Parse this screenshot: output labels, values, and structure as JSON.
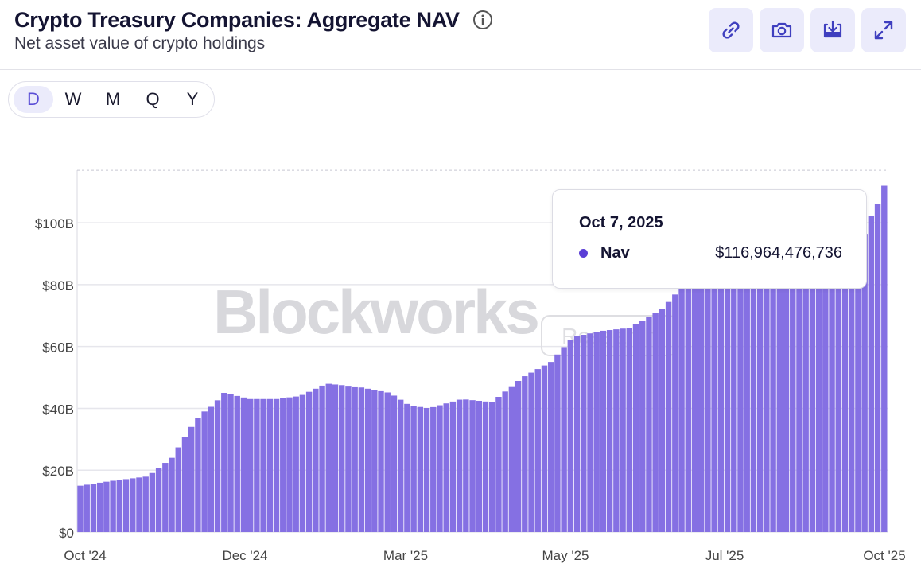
{
  "header": {
    "title": "Crypto Treasury Companies: Aggregate NAV",
    "subtitle": "Net asset value of crypto holdings"
  },
  "toolbar": {
    "buttons": [
      {
        "name": "link-button",
        "icon": "link-icon"
      },
      {
        "name": "screenshot-button",
        "icon": "camera-icon"
      },
      {
        "name": "download-button",
        "icon": "download-icon"
      },
      {
        "name": "expand-button",
        "icon": "expand-icon"
      }
    ]
  },
  "range_selector": {
    "options": [
      "D",
      "W",
      "M",
      "Q",
      "Y"
    ],
    "selected": "D"
  },
  "watermark": {
    "brand": "Blockworks",
    "tag": "Research"
  },
  "tooltip": {
    "date": "Oct 7, 2025",
    "series_name": "Nav",
    "value": "$116,964,476,736"
  },
  "colors": {
    "bar": "#8570e3",
    "accent": "#5b3fd6",
    "button_bg": "#ebebfb"
  },
  "chart_data": {
    "type": "bar",
    "title": "Crypto Treasury Companies: Aggregate NAV",
    "subtitle": "Net asset value of crypto holdings",
    "x_ticks": [
      "Oct '24",
      "Dec '24",
      "Mar '25",
      "May '25",
      "Jul '25",
      "Oct '25"
    ],
    "y_ticks": [
      "$0",
      "$20B",
      "$40B",
      "$60B",
      "$80B",
      "$100B"
    ],
    "ylim": [
      0,
      117
    ],
    "y_unit": "billions USD",
    "grid": "horizontal",
    "highlight_reference_lines": [
      103.5,
      116.96
    ],
    "series": [
      {
        "name": "Nav",
        "anchors": [
          {
            "x": "2024-10-01",
            "y": 15
          },
          {
            "x": "2024-10-15",
            "y": 16.5
          },
          {
            "x": "2024-11-01",
            "y": 18
          },
          {
            "x": "2024-11-12",
            "y": 24
          },
          {
            "x": "2024-11-20",
            "y": 33
          },
          {
            "x": "2024-11-25",
            "y": 38
          },
          {
            "x": "2024-12-01",
            "y": 41
          },
          {
            "x": "2024-12-06",
            "y": 45
          },
          {
            "x": "2024-12-18",
            "y": 43
          },
          {
            "x": "2024-12-30",
            "y": 43
          },
          {
            "x": "2025-01-10",
            "y": 44
          },
          {
            "x": "2025-01-22",
            "y": 48
          },
          {
            "x": "2025-02-05",
            "y": 47
          },
          {
            "x": "2025-02-20",
            "y": 45
          },
          {
            "x": "2025-03-01",
            "y": 41
          },
          {
            "x": "2025-03-10",
            "y": 40
          },
          {
            "x": "2025-03-25",
            "y": 43
          },
          {
            "x": "2025-04-08",
            "y": 42
          },
          {
            "x": "2025-04-22",
            "y": 50
          },
          {
            "x": "2025-05-05",
            "y": 55
          },
          {
            "x": "2025-05-15",
            "y": 63
          },
          {
            "x": "2025-05-28",
            "y": 65
          },
          {
            "x": "2025-06-10",
            "y": 66
          },
          {
            "x": "2025-06-25",
            "y": 72
          },
          {
            "x": "2025-07-05",
            "y": 80
          },
          {
            "x": "2025-07-15",
            "y": 82
          },
          {
            "x": "2025-08-01",
            "y": 82
          },
          {
            "x": "2025-08-15",
            "y": 82
          },
          {
            "x": "2025-09-01",
            "y": 82
          },
          {
            "x": "2025-09-20",
            "y": 85
          },
          {
            "x": "2025-09-30",
            "y": 104
          },
          {
            "x": "2025-10-03",
            "y": 107
          },
          {
            "x": "2025-10-07",
            "y": 116.96
          }
        ],
        "daily_from": "2024-10-01",
        "daily_to": "2025-10-07"
      }
    ]
  }
}
